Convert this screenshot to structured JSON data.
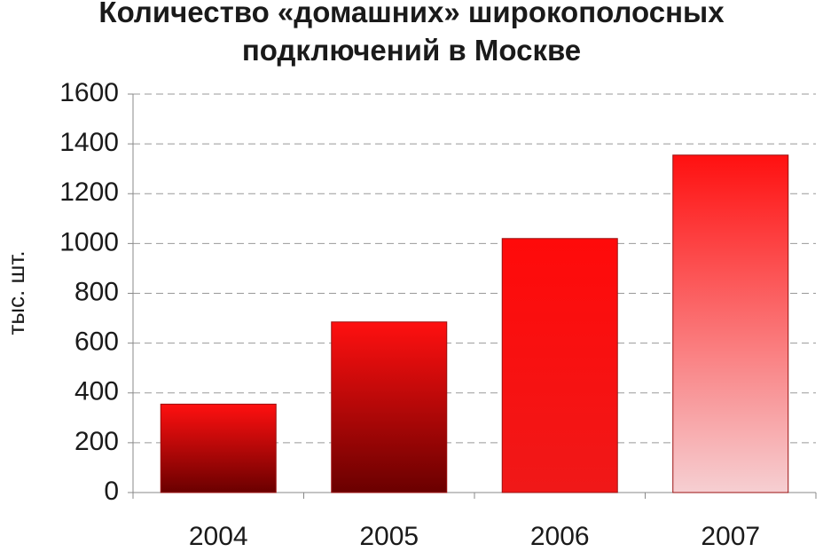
{
  "chart_data": {
    "type": "bar",
    "title": "Количество «домашних» широкополосных подключений в Москве",
    "y_label": "тыс. шт.",
    "categories": [
      "2004",
      "2005",
      "2006",
      "2007"
    ],
    "values": [
      355,
      685,
      1020,
      1355
    ],
    "colors": [
      [
        "#ff1010",
        "#6a0000"
      ],
      [
        "#ff1010",
        "#6a0000"
      ],
      [
        "#ff0a0a",
        "#f01818"
      ],
      [
        "#ff1010",
        "#f6cfd2"
      ]
    ],
    "ylim": [
      0,
      1600
    ],
    "yticks": [
      0,
      200,
      400,
      600,
      800,
      1000,
      1200,
      1400,
      1600
    ],
    "grid": true
  }
}
